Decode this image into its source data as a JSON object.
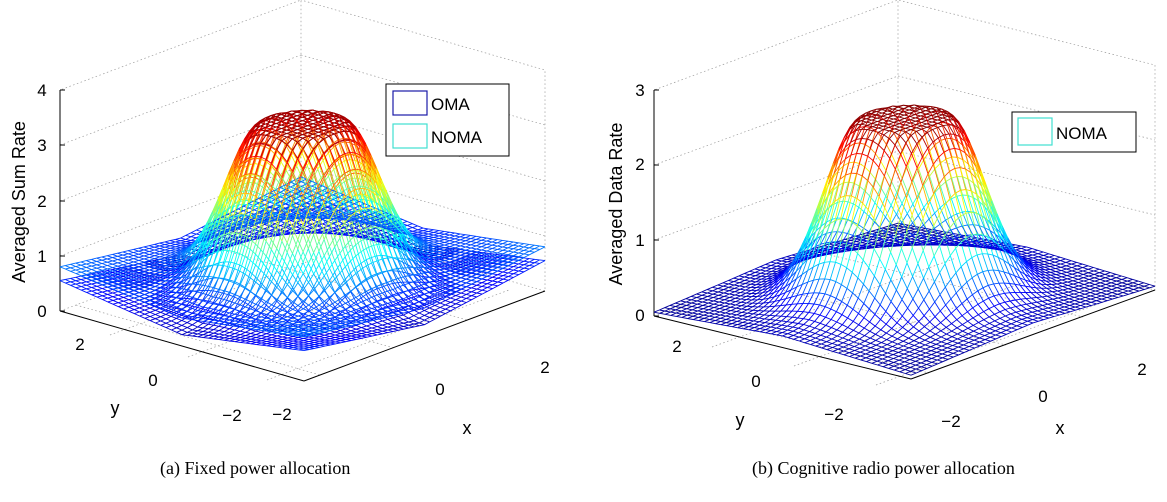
{
  "chart_data": [
    {
      "type": "surface",
      "id": "a",
      "zlabel": "Averaged Sum Rate",
      "xlabel": "x",
      "ylabel": "y",
      "x_ticks": [
        "−2",
        "0",
        "2"
      ],
      "y_ticks": [
        "−2",
        "0",
        "2"
      ],
      "z_ticks": [
        "0",
        "1",
        "2",
        "3",
        "4"
      ],
      "xlim": [
        -3.5,
        3.5
      ],
      "ylim": [
        -3.5,
        3.5
      ],
      "zlim": [
        0,
        4
      ],
      "grid": true,
      "legend_position": "top-right",
      "colormap": "jet",
      "series": [
        {
          "name": "OMA",
          "legend_color": "#1a1aa8",
          "center_value": 3.2,
          "plateau_radius": 0.85,
          "edge_value": 0.5,
          "corner_value": 0.8
        },
        {
          "name": "NOMA",
          "legend_color": "#40e0d0",
          "center_value": 3.2,
          "plateau_radius": 0.85,
          "edge_value": 0.2,
          "corner_value": 0.55
        }
      ]
    },
    {
      "type": "surface",
      "id": "b",
      "zlabel": "Averaged Data Rate",
      "xlabel": "x",
      "ylabel": "y",
      "x_ticks": [
        "−2",
        "0",
        "2"
      ],
      "y_ticks": [
        "−2",
        "0",
        "2"
      ],
      "z_ticks": [
        "0",
        "1",
        "2",
        "3"
      ],
      "xlim": [
        -3.5,
        3.5
      ],
      "ylim": [
        -3.5,
        3.5
      ],
      "zlim": [
        0,
        3
      ],
      "grid": true,
      "legend_position": "top-right",
      "colormap": "jet",
      "series": [
        {
          "name": "NOMA",
          "legend_color": "#40e0d0",
          "center_value": 2.45,
          "plateau_radius": 0.85,
          "edge_value": 0.15,
          "corner_value": 0.05
        }
      ]
    }
  ],
  "captions": {
    "a": "(a)  Fixed power allocation",
    "b": "(b)  Cognitive radio power allocation"
  }
}
